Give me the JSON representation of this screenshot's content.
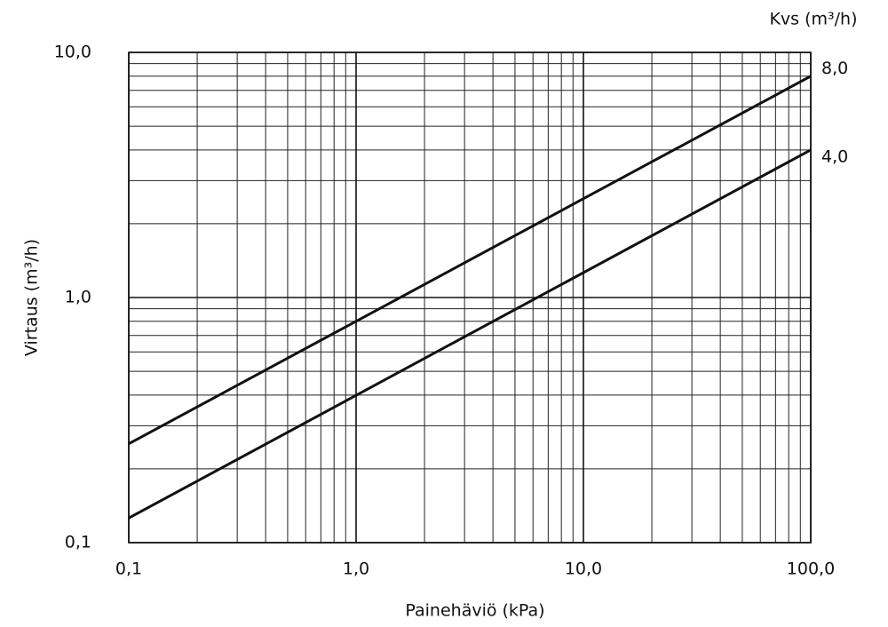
{
  "chart_data": {
    "type": "line",
    "x_label": "Painehäviö (kPa)",
    "y_label": "Virtaus (m³/h)",
    "legend_title": "Kvs (m³/h)",
    "x": [
      0.1,
      100
    ],
    "series": [
      {
        "name": "8,0",
        "color": "#111111",
        "values": [
          0.253,
          8.0
        ]
      },
      {
        "name": "4,0",
        "color": "#111111",
        "values": [
          0.126,
          4.0
        ]
      }
    ],
    "log_x": true,
    "log_y": true,
    "xlim": [
      0.1,
      100
    ],
    "ylim": [
      0.1,
      10
    ],
    "xticks": [
      {
        "value": 0.1,
        "label": "0,1"
      },
      {
        "value": 1,
        "label": "1,0"
      },
      {
        "value": 10,
        "label": "10,0"
      },
      {
        "value": 100,
        "label": "100,0"
      }
    ],
    "yticks": [
      {
        "value": 0.1,
        "label": "0,1"
      },
      {
        "value": 1,
        "label": "1,0"
      },
      {
        "value": 10,
        "label": "10,0"
      }
    ],
    "minor_xticks": [
      0.2,
      0.3,
      0.4,
      0.5,
      0.6,
      0.7,
      0.8,
      0.9,
      2,
      3,
      4,
      5,
      6,
      7,
      8,
      9,
      20,
      30,
      40,
      50,
      60,
      70,
      80,
      90
    ],
    "minor_yticks": [
      0.2,
      0.3,
      0.4,
      0.5,
      0.6,
      0.7,
      0.8,
      0.9,
      2,
      3,
      4,
      5,
      6,
      7,
      8,
      9
    ],
    "grid": true
  }
}
